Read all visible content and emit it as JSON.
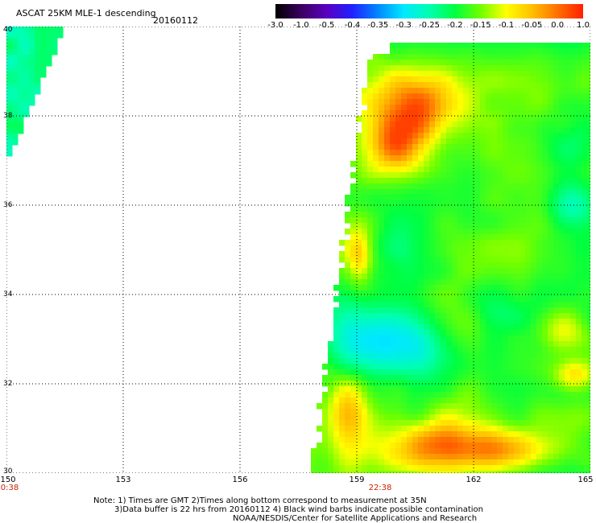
{
  "header": {
    "title": "ASCAT 25KM MLE-1 descending",
    "date": "20160112"
  },
  "colorbar": {
    "labels": [
      "-3.0",
      "-1.0",
      "-0.5",
      "-0.4",
      "-0.35",
      "-0.3",
      "-0.25",
      "-0.2",
      "-0.15",
      "-0.1",
      "-0.05",
      "0.0",
      "1.0"
    ],
    "colors": [
      "#000000",
      "#3a0060",
      "#5a00c0",
      "#2020ff",
      "#0088ff",
      "#00e8ff",
      "#00ffb0",
      "#00ff40",
      "#70ff00",
      "#ffff00",
      "#ffc000",
      "#ff7000",
      "#ff2000"
    ]
  },
  "map": {
    "lat_labels": [
      "40",
      "38",
      "36",
      "34",
      "32",
      "30"
    ],
    "lat_values": [
      40,
      38,
      36,
      34,
      32,
      30
    ],
    "lon_labels": [
      "150",
      "153",
      "156",
      "159",
      "162",
      "165"
    ],
    "lon_values": [
      150,
      153,
      156,
      159,
      162,
      165
    ],
    "lat_range": [
      30,
      40
    ],
    "lon_range": [
      150,
      165
    ],
    "time_labels": [
      {
        "lon": 150,
        "text": "0:38"
      },
      {
        "lon": 159.6,
        "text": "22:38"
      }
    ],
    "gridlines": true
  },
  "notes": {
    "line1": "Note: 1) Times are GMT 2)Times along bottom correspond to measurement at 35N",
    "line2": "3)Data buffer is 22 hrs from 20160112 4) Black wind barbs indicate possible contamination",
    "line3": "NOAA/NESDIS/Center for Satellite Applications and Research"
  }
}
